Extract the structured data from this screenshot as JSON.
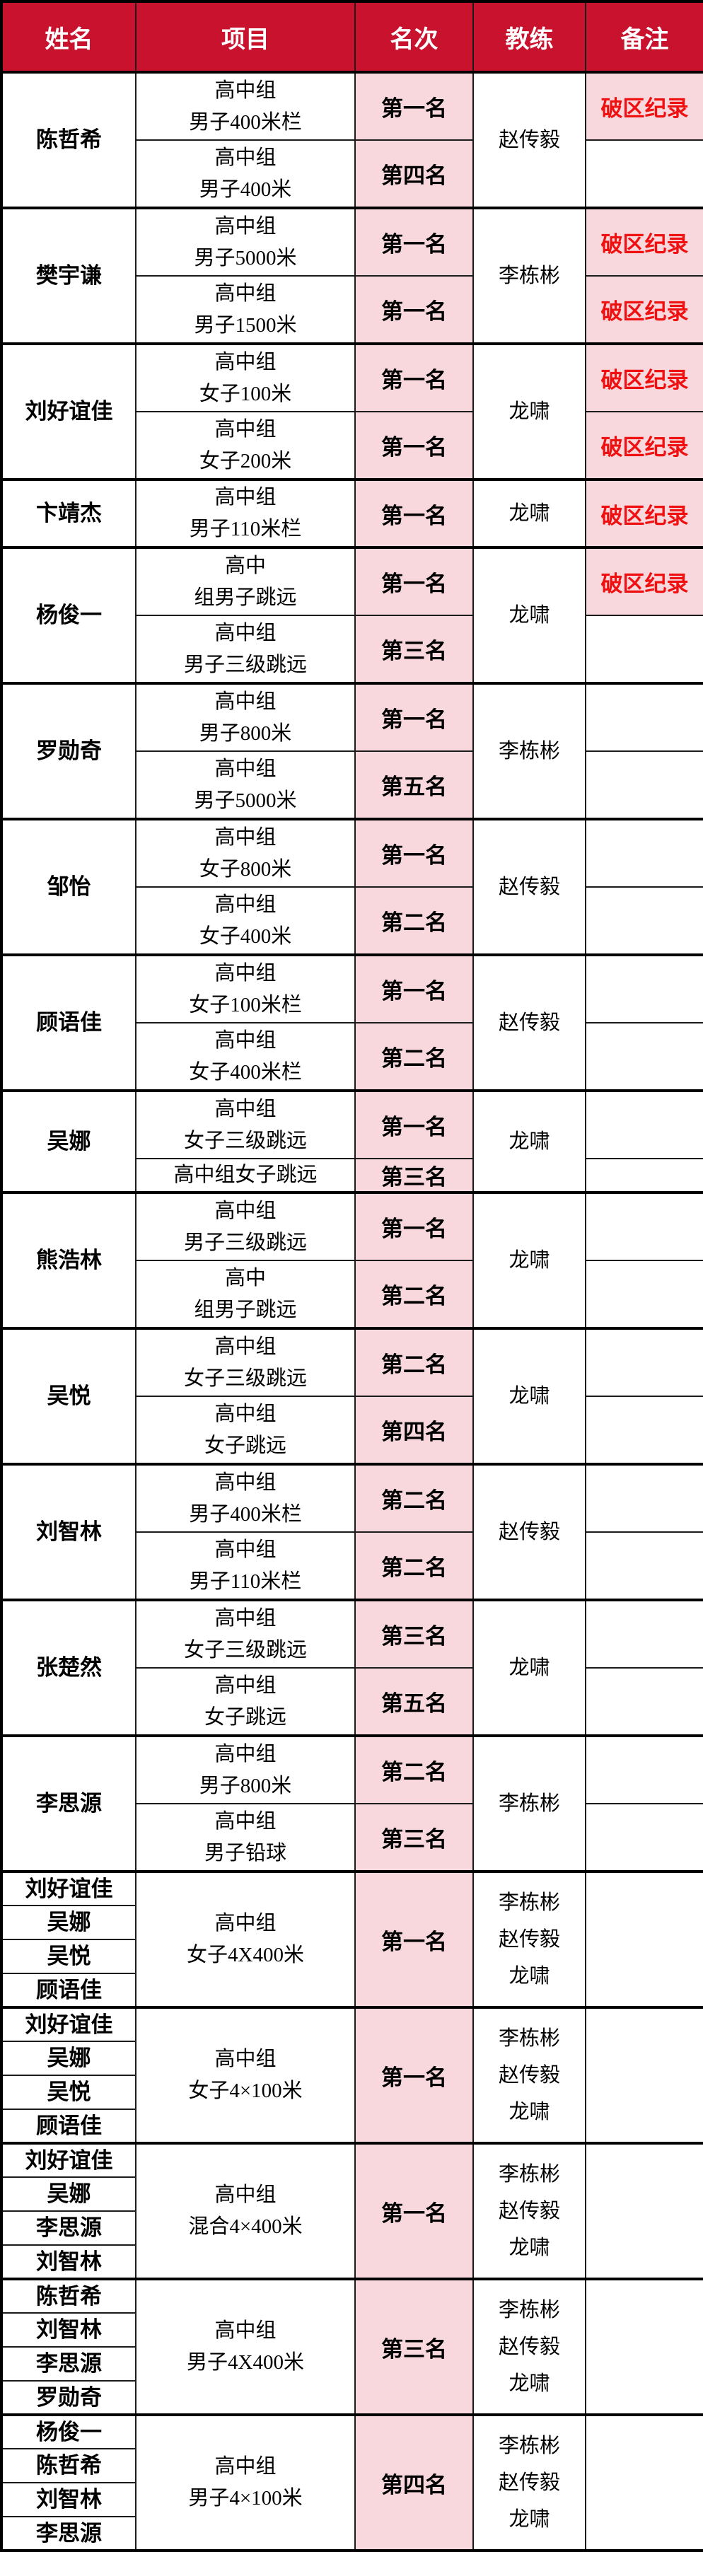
{
  "colors": {
    "header_bg": "#c8122e",
    "header_text": "#ffffff",
    "rank_cell_bg": "#f8d8dc",
    "remark_text": "#ef1111",
    "border_thin": "#1b1b1b",
    "border_thick": "#000000"
  },
  "table": {
    "columns": [
      {
        "key": "name",
        "label": "姓名"
      },
      {
        "key": "event",
        "label": "项目"
      },
      {
        "key": "rank",
        "label": "名次"
      },
      {
        "key": "coach",
        "label": "教练"
      },
      {
        "key": "remark",
        "label": "备注"
      }
    ],
    "groups": [
      {
        "names": [
          "陈哲希"
        ],
        "coach_lines": [
          "赵传毅"
        ],
        "rows": [
          {
            "event_lines": [
              "高中组",
              "男子400米栏"
            ],
            "rank": "第一名",
            "remark": "破区纪录"
          },
          {
            "event_lines": [
              "高中组",
              "男子400米"
            ],
            "rank": "第四名",
            "remark": ""
          }
        ]
      },
      {
        "names": [
          "樊宇谦"
        ],
        "coach_lines": [
          "李栋彬"
        ],
        "rows": [
          {
            "event_lines": [
              "高中组",
              "男子5000米"
            ],
            "rank": "第一名",
            "remark": "破区纪录"
          },
          {
            "event_lines": [
              "高中组",
              "男子1500米"
            ],
            "rank": "第一名",
            "remark": "破区纪录"
          }
        ]
      },
      {
        "names": [
          "刘好谊佳"
        ],
        "coach_lines": [
          "龙啸"
        ],
        "rows": [
          {
            "event_lines": [
              "高中组",
              "女子100米"
            ],
            "rank": "第一名",
            "remark": "破区纪录"
          },
          {
            "event_lines": [
              "高中组",
              "女子200米"
            ],
            "rank": "第一名",
            "remark": "破区纪录"
          }
        ]
      },
      {
        "names": [
          "卞靖杰"
        ],
        "coach_lines": [
          "龙啸"
        ],
        "rows": [
          {
            "event_lines": [
              "高中组",
              "男子110米栏"
            ],
            "rank": "第一名",
            "remark": "破区纪录"
          }
        ]
      },
      {
        "names": [
          "杨俊一"
        ],
        "coach_lines": [
          "龙啸"
        ],
        "rows": [
          {
            "event_lines": [
              "高中",
              "组男子跳远"
            ],
            "rank": "第一名",
            "remark": "破区纪录"
          },
          {
            "event_lines": [
              "高中组",
              "男子三级跳远"
            ],
            "rank": "第三名",
            "remark": ""
          }
        ]
      },
      {
        "names": [
          "罗勋奇"
        ],
        "coach_lines": [
          "李栋彬"
        ],
        "rows": [
          {
            "event_lines": [
              "高中组",
              "男子800米"
            ],
            "rank": "第一名",
            "remark": ""
          },
          {
            "event_lines": [
              "高中组",
              "男子5000米"
            ],
            "rank": "第五名",
            "remark": ""
          }
        ]
      },
      {
        "names": [
          "邹怡"
        ],
        "coach_lines": [
          "赵传毅"
        ],
        "rows": [
          {
            "event_lines": [
              "高中组",
              "女子800米"
            ],
            "rank": "第一名",
            "remark": ""
          },
          {
            "event_lines": [
              "高中组",
              "女子400米"
            ],
            "rank": "第二名",
            "remark": ""
          }
        ]
      },
      {
        "names": [
          "顾语佳"
        ],
        "coach_lines": [
          "赵传毅"
        ],
        "rows": [
          {
            "event_lines": [
              "高中组",
              "女子100米栏"
            ],
            "rank": "第一名",
            "remark": ""
          },
          {
            "event_lines": [
              "高中组",
              "女子400米栏"
            ],
            "rank": "第二名",
            "remark": ""
          }
        ]
      },
      {
        "names": [
          "吴娜"
        ],
        "coach_lines": [
          "龙啸"
        ],
        "rows": [
          {
            "event_lines": [
              "高中组",
              "女子三级跳远"
            ],
            "rank": "第一名",
            "remark": ""
          },
          {
            "event_lines": [
              "高中组女子跳远"
            ],
            "rank": "第三名",
            "remark": ""
          }
        ]
      },
      {
        "names": [
          "熊浩林"
        ],
        "coach_lines": [
          "龙啸"
        ],
        "rows": [
          {
            "event_lines": [
              "高中组",
              "男子三级跳远"
            ],
            "rank": "第一名",
            "remark": ""
          },
          {
            "event_lines": [
              "高中",
              "组男子跳远"
            ],
            "rank": "第二名",
            "remark": ""
          }
        ]
      },
      {
        "names": [
          "吴悦"
        ],
        "coach_lines": [
          "龙啸"
        ],
        "rows": [
          {
            "event_lines": [
              "高中组",
              "女子三级跳远"
            ],
            "rank": "第二名",
            "remark": ""
          },
          {
            "event_lines": [
              "高中组",
              "女子跳远"
            ],
            "rank": "第四名",
            "remark": ""
          }
        ]
      },
      {
        "names": [
          "刘智林"
        ],
        "coach_lines": [
          "赵传毅"
        ],
        "rows": [
          {
            "event_lines": [
              "高中组",
              "男子400米栏"
            ],
            "rank": "第二名",
            "remark": ""
          },
          {
            "event_lines": [
              "高中组",
              "男子110米栏"
            ],
            "rank": "第二名",
            "remark": ""
          }
        ]
      },
      {
        "names": [
          "张楚然"
        ],
        "coach_lines": [
          "龙啸"
        ],
        "rows": [
          {
            "event_lines": [
              "高中组",
              "女子三级跳远"
            ],
            "rank": "第三名",
            "remark": ""
          },
          {
            "event_lines": [
              "高中组",
              "女子跳远"
            ],
            "rank": "第五名",
            "remark": ""
          }
        ]
      },
      {
        "names": [
          "李思源"
        ],
        "coach_lines": [
          "李栋彬"
        ],
        "rows": [
          {
            "event_lines": [
              "高中组",
              "男子800米"
            ],
            "rank": "第二名",
            "remark": ""
          },
          {
            "event_lines": [
              "高中组",
              "男子铅球"
            ],
            "rank": "第三名",
            "remark": ""
          }
        ]
      },
      {
        "names": [
          "刘好谊佳",
          "吴娜",
          "吴悦",
          "顾语佳"
        ],
        "coach_lines": [
          "李栋彬",
          "赵传毅",
          "龙啸"
        ],
        "rows": [
          {
            "event_lines": [
              "高中组",
              "女子4X400米"
            ],
            "rank": "第一名",
            "remark": ""
          }
        ]
      },
      {
        "names": [
          "刘好谊佳",
          "吴娜",
          "吴悦",
          "顾语佳"
        ],
        "coach_lines": [
          "李栋彬",
          "赵传毅",
          "龙啸"
        ],
        "rows": [
          {
            "event_lines": [
              "高中组",
              "女子4×100米"
            ],
            "rank": "第一名",
            "remark": ""
          }
        ]
      },
      {
        "names": [
          "刘好谊佳",
          "吴娜",
          "李思源",
          "刘智林"
        ],
        "coach_lines": [
          "李栋彬",
          "赵传毅",
          "龙啸"
        ],
        "rows": [
          {
            "event_lines": [
              "高中组",
              "混合4×400米"
            ],
            "rank": "第一名",
            "remark": ""
          }
        ]
      },
      {
        "names": [
          "陈哲希",
          "刘智林",
          "李思源",
          "罗勋奇"
        ],
        "coach_lines": [
          "李栋彬",
          "赵传毅",
          "龙啸"
        ],
        "rows": [
          {
            "event_lines": [
              "高中组",
              "男子4X400米"
            ],
            "rank": "第三名",
            "remark": ""
          }
        ]
      },
      {
        "names": [
          "杨俊一",
          "陈哲希",
          "刘智林",
          "李思源"
        ],
        "coach_lines": [
          "李栋彬",
          "赵传毅",
          "龙啸"
        ],
        "rows": [
          {
            "event_lines": [
              "高中组",
              "男子4×100米"
            ],
            "rank": "第四名",
            "remark": ""
          }
        ]
      }
    ]
  }
}
